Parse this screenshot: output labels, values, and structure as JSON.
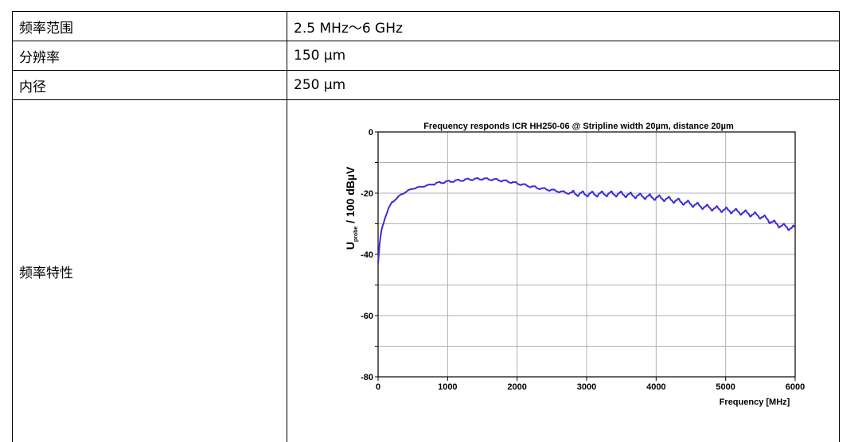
{
  "table": {
    "rows": [
      {
        "key": "频率范围",
        "value": "2.5 MHz～6 GHz"
      },
      {
        "key": "分辨率",
        "value": "150 µm"
      },
      {
        "key": "内径",
        "value": "250 µm"
      },
      {
        "key": "频率特性"
      }
    ]
  },
  "chart_data": {
    "type": "line",
    "title": "Frequency responds ICR HH250-06 @ Stripline width 20µm, distance 20µm",
    "xlabel": "Frequency [MHz]",
    "ylabel_main": "U",
    "ylabel_sub": "probe",
    "ylabel_rest": " / 100 dBµV",
    "xlim": [
      0,
      6000
    ],
    "ylim": [
      -80,
      0
    ],
    "x_ticks": [
      "0",
      "1000",
      "2000",
      "3000",
      "4000",
      "5000",
      "6000"
    ],
    "y_ticks": [
      "0",
      "-20",
      "-40",
      "-60",
      "-80"
    ],
    "grid": true,
    "line_color": "#3a2bdc",
    "series": [
      {
        "x": [
          0,
          25,
          50,
          100,
          150,
          200,
          300,
          400,
          500,
          700,
          900,
          1100,
          1300,
          1500,
          1700,
          1900,
          2100,
          2300,
          2500,
          2700,
          2900,
          3100,
          3300,
          3500,
          3700,
          3900,
          4100,
          4300,
          4500,
          4700,
          4900,
          5100,
          5300,
          5500,
          5600,
          5700,
          5800,
          5900,
          6000
        ],
        "y": [
          -43,
          -36,
          -32,
          -28,
          -25,
          -23,
          -21,
          -19.5,
          -18.5,
          -17.5,
          -16.5,
          -16,
          -15.5,
          -15.3,
          -15.6,
          -16.3,
          -17.3,
          -18.3,
          -19,
          -19.8,
          -20.2,
          -20.3,
          -20.2,
          -20.3,
          -20.8,
          -21.2,
          -21.7,
          -22.5,
          -23.5,
          -24.5,
          -25.2,
          -25.8,
          -26.5,
          -27.5,
          -28.5,
          -29.8,
          -30.6,
          -31.2,
          -31.5
        ]
      }
    ]
  }
}
